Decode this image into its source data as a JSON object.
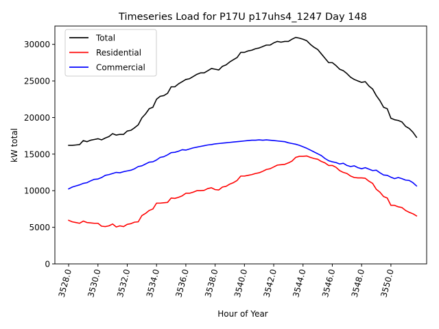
{
  "chart_data": {
    "type": "line",
    "title": "Timeseries Load for P17U p17uhs4_1247  Day 148",
    "xlabel": "Hour of Year",
    "ylabel": "kW total",
    "xlim": [
      3527.06,
      3552.44
    ],
    "ylim": [
      0,
      32500
    ],
    "xticks": [
      3528,
      3530,
      3532,
      3534,
      3536,
      3538,
      3540,
      3542,
      3544,
      3546,
      3548,
      3550
    ],
    "xtick_labels": [
      "3528.0",
      "3530.0",
      "3532.0",
      "3534.0",
      "3536.0",
      "3538.0",
      "3540.0",
      "3542.0",
      "3544.0",
      "3546.0",
      "3548.0",
      "3550.0"
    ],
    "yticks": [
      0,
      5000,
      10000,
      15000,
      20000,
      25000,
      30000
    ],
    "ytick_labels": [
      "0",
      "5000",
      "10000",
      "15000",
      "20000",
      "25000",
      "30000"
    ],
    "grid": false,
    "legend_position": "upper-left",
    "x_start": 3528.0,
    "x_step": 0.25,
    "series": [
      {
        "name": "Total",
        "color": "#000000",
        "values": [
          16200,
          16200,
          16250,
          16300,
          16850,
          16700,
          16900,
          17000,
          17100,
          16950,
          17200,
          17400,
          17800,
          17600,
          17700,
          17700,
          18150,
          18250,
          18600,
          19000,
          19950,
          20500,
          21200,
          21400,
          22500,
          22900,
          23000,
          23300,
          24200,
          24200,
          24600,
          24900,
          25200,
          25300,
          25600,
          25900,
          26100,
          26100,
          26400,
          26700,
          26600,
          26500,
          27000,
          27200,
          27600,
          27900,
          28200,
          28900,
          28900,
          29100,
          29200,
          29400,
          29500,
          29700,
          29900,
          29900,
          30200,
          30400,
          30300,
          30400,
          30400,
          30700,
          30950,
          30850,
          30700,
          30500,
          30000,
          29600,
          29300,
          28700,
          28100,
          27500,
          27500,
          27100,
          26600,
          26400,
          26000,
          25500,
          25200,
          25000,
          24800,
          24900,
          24300,
          23900,
          23000,
          22300,
          21400,
          21200,
          19900,
          19700,
          19600,
          19400,
          18800,
          18500,
          18000,
          17300
        ]
      },
      {
        "name": "Residential",
        "color": "#ff0000",
        "values": [
          5950,
          5750,
          5650,
          5550,
          5850,
          5650,
          5600,
          5550,
          5550,
          5150,
          5100,
          5200,
          5450,
          5050,
          5200,
          5100,
          5400,
          5500,
          5700,
          5750,
          6600,
          6900,
          7300,
          7500,
          8300,
          8300,
          8350,
          8400,
          9000,
          8950,
          9100,
          9300,
          9650,
          9650,
          9800,
          10000,
          10000,
          10050,
          10300,
          10400,
          10150,
          10100,
          10500,
          10600,
          10900,
          11100,
          11400,
          12000,
          12000,
          12100,
          12200,
          12350,
          12450,
          12650,
          12900,
          13000,
          13250,
          13500,
          13550,
          13600,
          13800,
          14050,
          14550,
          14700,
          14700,
          14750,
          14550,
          14400,
          14300,
          14000,
          13800,
          13450,
          13450,
          13200,
          12750,
          12500,
          12350,
          12000,
          11800,
          11750,
          11750,
          11700,
          11300,
          11000,
          10200,
          9800,
          9200,
          9000,
          8000,
          8000,
          7800,
          7700,
          7300,
          7050,
          6850,
          6550
        ]
      },
      {
        "name": "Commercial",
        "color": "#0000ff",
        "values": [
          10250,
          10500,
          10650,
          10800,
          11000,
          11100,
          11350,
          11550,
          11600,
          11800,
          12100,
          12200,
          12350,
          12500,
          12450,
          12600,
          12700,
          12800,
          13000,
          13300,
          13400,
          13650,
          13900,
          13950,
          14200,
          14550,
          14650,
          14900,
          15200,
          15250,
          15400,
          15600,
          15550,
          15700,
          15850,
          15950,
          16050,
          16150,
          16250,
          16300,
          16400,
          16450,
          16500,
          16550,
          16600,
          16650,
          16700,
          16750,
          16800,
          16850,
          16900,
          16900,
          16950,
          16900,
          16950,
          16900,
          16850,
          16800,
          16750,
          16700,
          16550,
          16450,
          16350,
          16200,
          16000,
          15800,
          15550,
          15300,
          15050,
          14800,
          14400,
          14100,
          13950,
          13850,
          13650,
          13750,
          13450,
          13300,
          13400,
          13150,
          13000,
          13150,
          12950,
          12750,
          12800,
          12450,
          12150,
          12100,
          11850,
          11650,
          11800,
          11650,
          11450,
          11400,
          11100,
          10650
        ]
      }
    ]
  }
}
